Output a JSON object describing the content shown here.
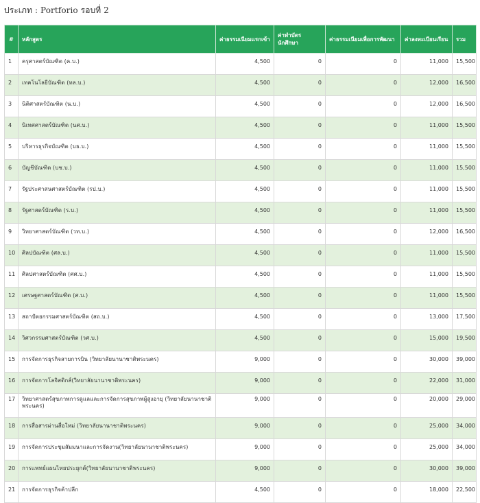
{
  "title": "ประเภท : Portforio รอบที่ 2",
  "table": {
    "headers": [
      "#",
      "หลักสูตร",
      "ค่าธรรมเนียมแรกเข้า",
      "ค่าทำบัตรนักศึกษา",
      "ค่าธรรมเนียมเพื่อการพัฒนา",
      "ค่าลงทะเบียนเรียน",
      "รวม"
    ],
    "rows": [
      [
        "1",
        "ครุศาสตร์บัณฑิต (ค.บ.)",
        "4,500",
        "0",
        "0",
        "11,000",
        "15,500"
      ],
      [
        "2",
        "เทคโนโลยีบัณฑิต (ทล.บ.)",
        "4,500",
        "0",
        "0",
        "12,000",
        "16,500"
      ],
      [
        "3",
        "นิติศาสตร์บัณฑิต (น.บ.)",
        "4,500",
        "0",
        "0",
        "12,000",
        "16,500"
      ],
      [
        "4",
        "นิเทศศาสตร์บัณฑิต (นศ.บ.)",
        "4,500",
        "0",
        "0",
        "11,000",
        "15,500"
      ],
      [
        "5",
        "บริหารธุรกิจบัณฑิต (บธ.บ.)",
        "4,500",
        "0",
        "0",
        "11,000",
        "15,500"
      ],
      [
        "6",
        "บัญชีบัณฑิต (บช.บ.)",
        "4,500",
        "0",
        "0",
        "11,000",
        "15,500"
      ],
      [
        "7",
        "รัฐประศาสนศาสตร์บัณฑิต (รป.บ.)",
        "4,500",
        "0",
        "0",
        "11,000",
        "15,500"
      ],
      [
        "8",
        "รัฐศาสตร์บัณฑิต (ร.บ.)",
        "4,500",
        "0",
        "0",
        "11,000",
        "15,500"
      ],
      [
        "9",
        "วิทยาศาสตร์บัณฑิต (วท.บ.)",
        "4,500",
        "0",
        "0",
        "12,000",
        "16,500"
      ],
      [
        "10",
        "ศิลปบัณฑิต (ศล.บ.)",
        "4,500",
        "0",
        "0",
        "11,000",
        "15,500"
      ],
      [
        "11",
        "ศิลปศาสตร์บัณฑิต (ศศ.บ.)",
        "4,500",
        "0",
        "0",
        "11,000",
        "15,500"
      ],
      [
        "12",
        "เศรษฐศาสตร์บัณฑิต (ศ.บ.)",
        "4,500",
        "0",
        "0",
        "11,000",
        "15,500"
      ],
      [
        "13",
        "สถาปัตยกรรมศาสตร์บัณฑิต (สถ.บ.)",
        "4,500",
        "0",
        "0",
        "13,000",
        "17,500"
      ],
      [
        "14",
        "วิศวกรรมศาสตร์บัณฑิต (วศ.บ.)",
        "4,500",
        "0",
        "0",
        "15,000",
        "19,500"
      ],
      [
        "15",
        "การจัดการธุรกิจสายการบิน (วิทยาลัยนานาชาติพระนคร)",
        "9,000",
        "0",
        "0",
        "30,000",
        "39,000"
      ],
      [
        "16",
        "การจัดการโลจิสติกส์(วิทยาลัยนานาชาติพระนคร)",
        "9,000",
        "0",
        "0",
        "22,000",
        "31,000"
      ],
      [
        "17",
        "วิทยาศาสตร์สุขภาพการดูแลและการจัดการสุขภาพผู้สูงอายุ (วิทยาลัยนานาชาติพระนคร)",
        "9,000",
        "0",
        "0",
        "20,000",
        "29,000"
      ],
      [
        "18",
        "การสื่อสารผ่านสื่อใหม่ (วิทยาลัยนานาชาติพระนคร)",
        "9,000",
        "0",
        "0",
        "25,000",
        "34,000"
      ],
      [
        "19",
        "การจัดการประชุมสัมมนาและการจัดงาน(วิทยาลัยนานาชาติพระนคร)",
        "9,000",
        "0",
        "0",
        "25,000",
        "34,000"
      ],
      [
        "20",
        "การแพทย์แผนไทยประยุกต์(วิทยาลัยนานาชาติพระนคร)",
        "9,000",
        "0",
        "0",
        "30,000",
        "39,000"
      ],
      [
        "21",
        "การจัดการธุรกิจค้าปลีก",
        "4,500",
        "0",
        "0",
        "18,000",
        "22,500"
      ]
    ]
  }
}
